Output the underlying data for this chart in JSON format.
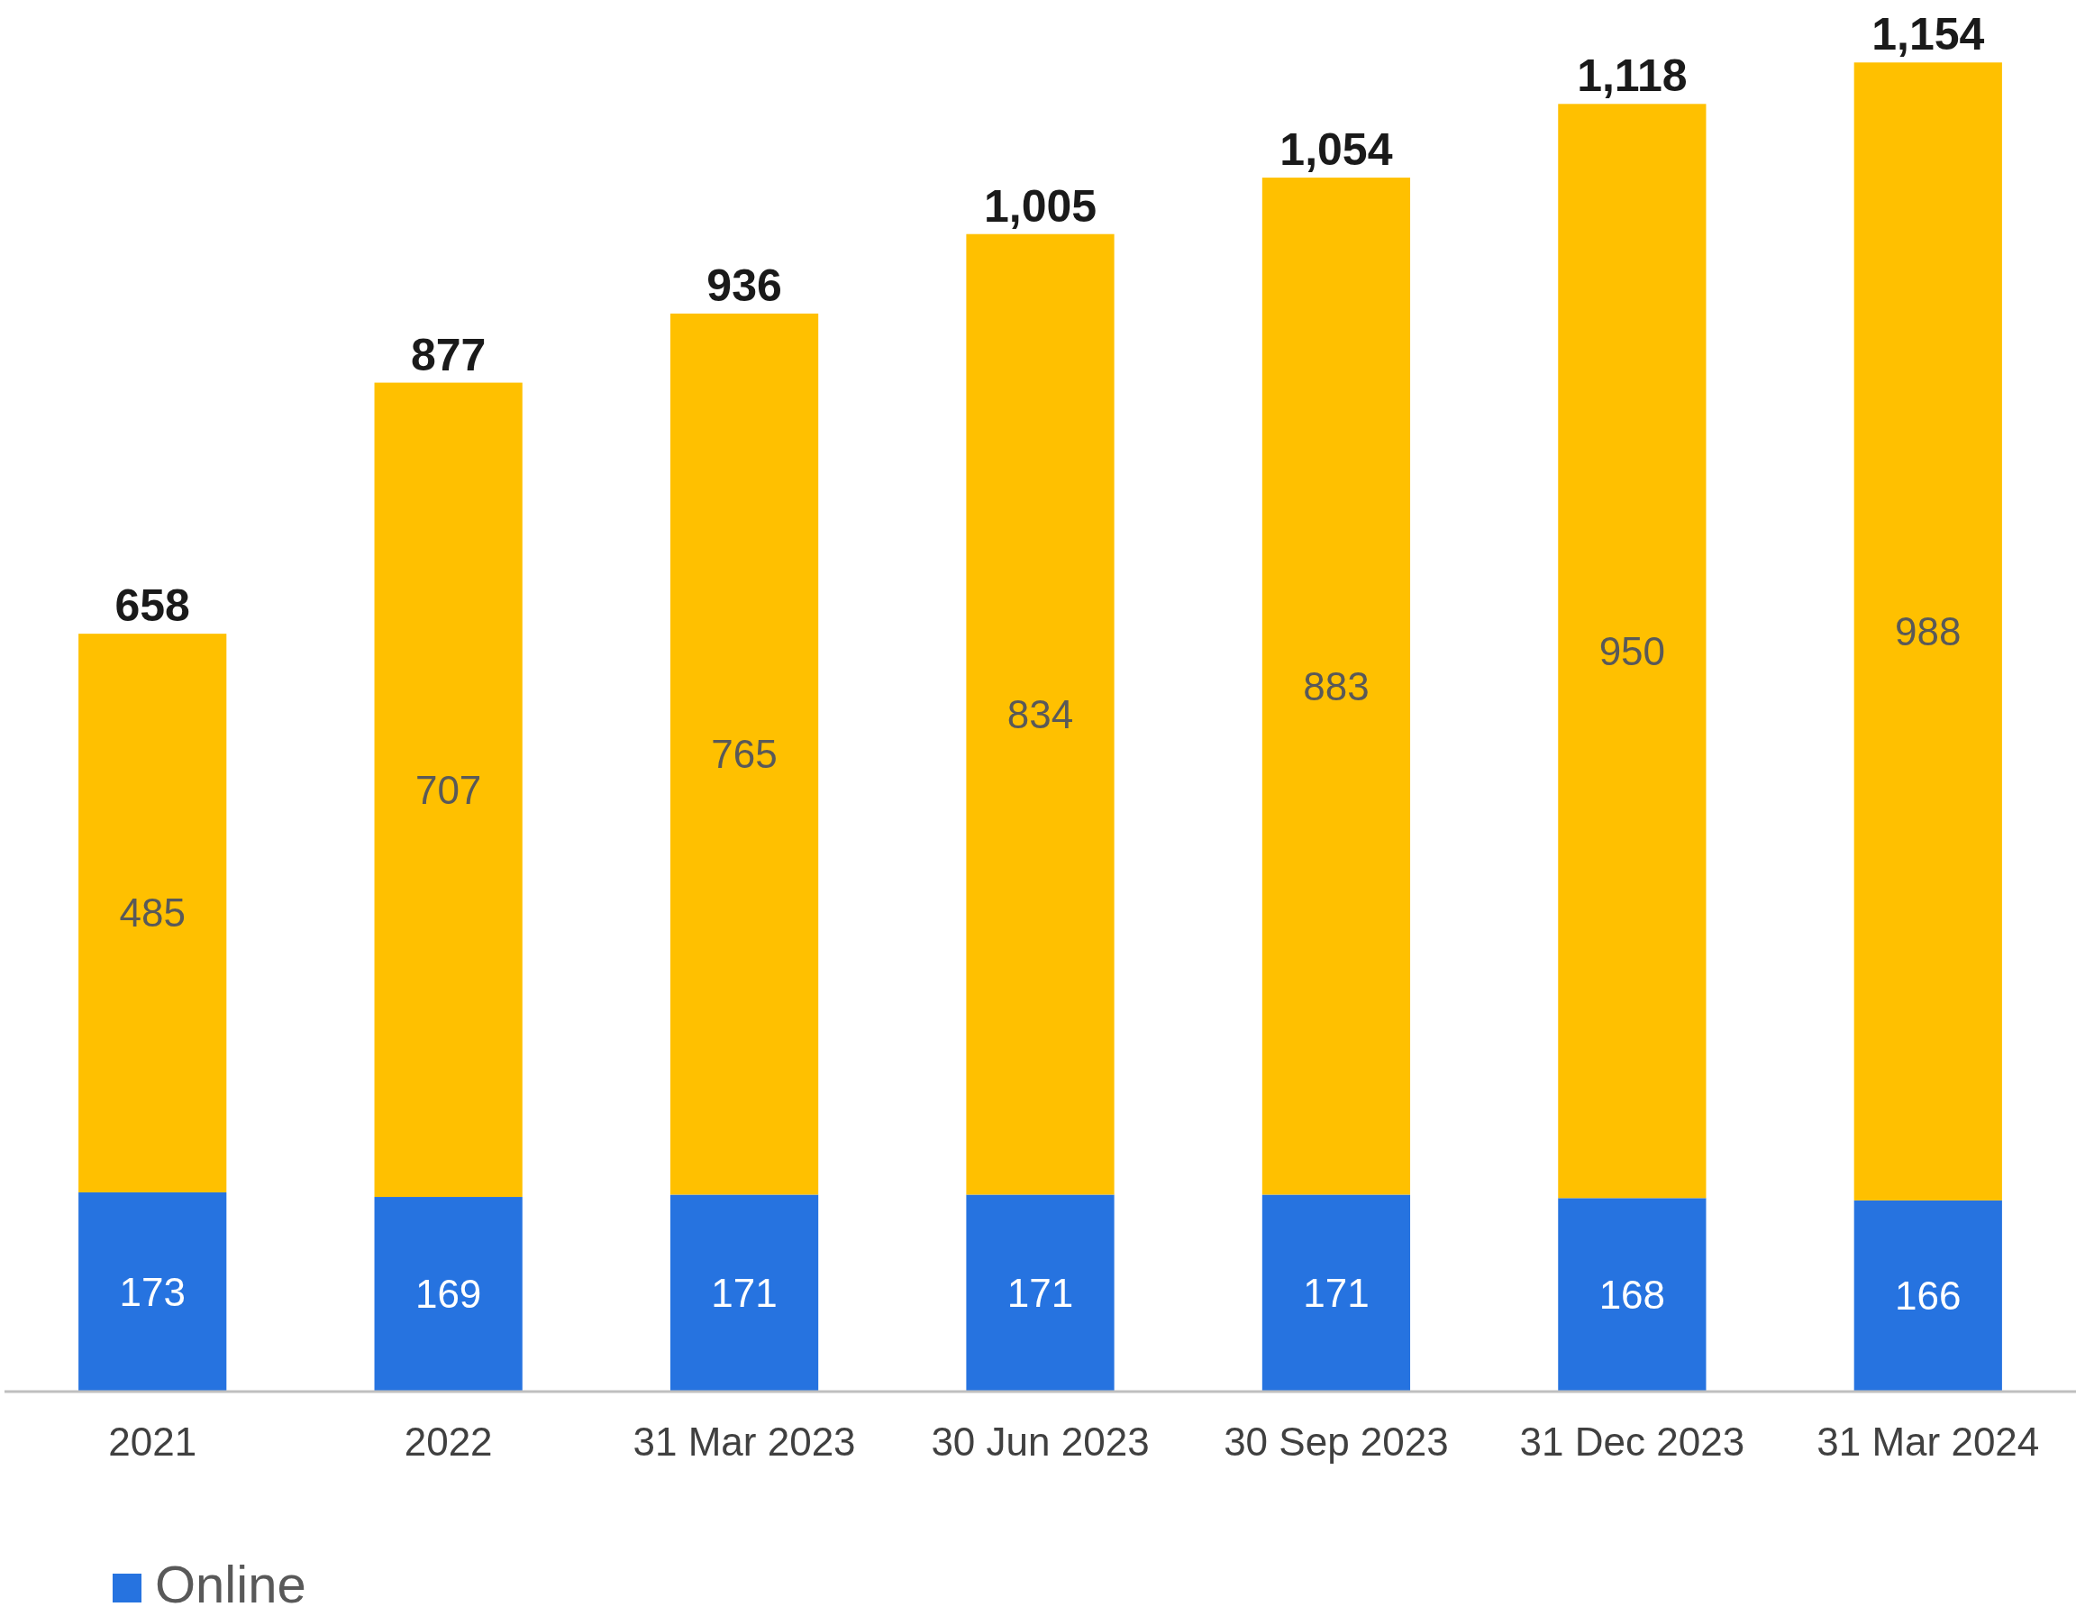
{
  "chart_data": {
    "type": "bar",
    "stacked": true,
    "data_labels": true,
    "legend": "bottom",
    "categories": [
      "2021",
      "2022",
      "31 Mar 2023",
      "30 Jun 2023",
      "30 Sep 2023",
      "31 Dec 2023",
      "31 Mar 2024"
    ],
    "series": [
      {
        "name": "Online",
        "color": "#2673e0",
        "values": [
          173,
          169,
          171,
          171,
          171,
          168,
          166
        ]
      },
      {
        "color": "#ffc000",
        "values": [
          485,
          707,
          765,
          834,
          883,
          950,
          988
        ]
      }
    ],
    "totals": [
      "658",
      "877",
      "936",
      "1,005",
      "1,054",
      "1,118",
      "1,154"
    ]
  }
}
